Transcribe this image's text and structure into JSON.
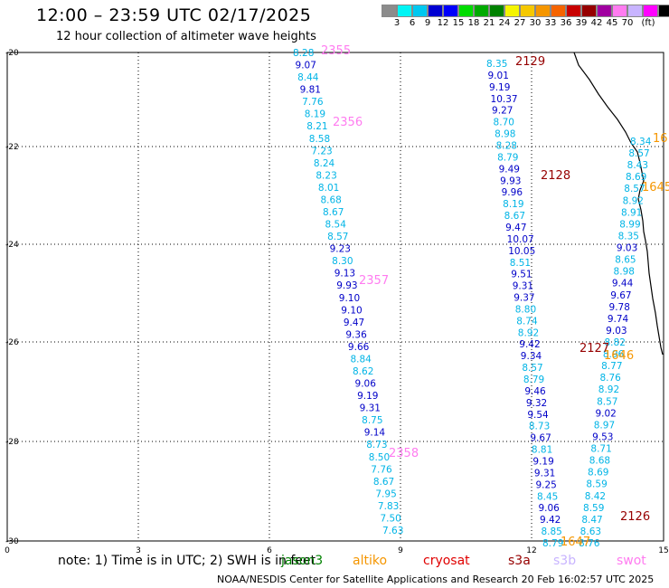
{
  "header": {
    "title": "12:00 – 23:59 UTC 02/17/2025",
    "subtitle": "12 hour collection of altimeter wave heights"
  },
  "legend": {
    "colors": [
      "#8c8c8c",
      "#00f5f5",
      "#00c8f0",
      "#0000d2",
      "#0000fa",
      "#00dc00",
      "#00aa00",
      "#008200",
      "#f5f500",
      "#f5c800",
      "#f59600",
      "#f56400",
      "#c80000",
      "#960000",
      "#a000a0",
      "#ff7cf0",
      "#c8b4ff",
      "#ff00ff",
      "#000000"
    ],
    "tick_labels": [
      "3",
      "6",
      "9",
      "12",
      "15",
      "18",
      "21",
      "24",
      "27",
      "30",
      "33",
      "36",
      "39",
      "42",
      "45",
      "70",
      "(ft)"
    ]
  },
  "map": {
    "x_ticks": [
      "0",
      "3",
      "6",
      "9",
      "12",
      "15"
    ],
    "y_ticks": [
      "-20",
      "-22",
      "-24",
      "-26",
      "-28",
      "-30"
    ],
    "coastline_color": "#000000",
    "grid_color": "#000000"
  },
  "tracks": [
    {
      "pass_label": "2355",
      "color": "#ff7cf0",
      "values": [
        "8.28",
        "9.07",
        "8.44",
        "9.81",
        "7.76",
        "8.19",
        "8.21",
        "8.58",
        "7.23",
        "8.24",
        "8.23",
        "8.01",
        "8.68",
        "8.67",
        "8.54",
        "8.57",
        "9.23",
        "8.30",
        "9.13",
        "9.93",
        "9.10",
        "9.10",
        "9.47",
        "9.36",
        "9.66",
        "8.84",
        "8.62",
        "9.06",
        "9.19",
        "9.31",
        "8.75",
        "9.14",
        "8.73",
        "8.50",
        "7.76",
        "8.67",
        "7.95",
        "7.83",
        "7.50",
        "7.63"
      ]
    },
    {
      "pass_label": "2129",
      "color": "#960000",
      "values": [
        "8.35",
        "9.01",
        "9.19",
        "10.37",
        "9.27",
        "8.70",
        "8.98",
        "8.28",
        "8.79",
        "9.49",
        "9.93",
        "9.96",
        "8.19",
        "8.67",
        "9.47",
        "10.07",
        "10.05",
        "8.51",
        "9.51",
        "9.31",
        "9.37",
        "8.80",
        "8.74",
        "8.92",
        "9.42",
        "9.34",
        "8.57",
        "8.79",
        "9.46",
        "9.32",
        "9.54",
        "8.73",
        "9.67",
        "8.81",
        "9.19",
        "9.31",
        "9.25",
        "8.45",
        "9.06",
        "9.42",
        "8.85",
        "8.79"
      ]
    },
    {
      "pass_label": "2127",
      "color": "#960000",
      "values": [
        "8.34",
        "8.57",
        "8.43",
        "8.69",
        "8.57",
        "8.92",
        "8.91",
        "8.99",
        "8.35",
        "9.03",
        "8.65",
        "8.98",
        "9.44",
        "9.67",
        "9.78",
        "9.74",
        "9.03",
        "8.82",
        "8.96",
        "8.77",
        "8.76",
        "8.92",
        "8.57",
        "9.02",
        "8.97",
        "9.53",
        "8.71",
        "8.68",
        "8.69",
        "8.59",
        "8.42",
        "8.59",
        "8.47",
        "8.63",
        "8.76"
      ]
    }
  ],
  "pass_labels": [
    {
      "text": "2355",
      "color": "#ff7cf0"
    },
    {
      "text": "2356",
      "color": "#ff7cf0"
    },
    {
      "text": "2357",
      "color": "#ff7cf0"
    },
    {
      "text": "2358",
      "color": "#ff7cf0"
    },
    {
      "text": "2129",
      "color": "#960000"
    },
    {
      "text": "2128",
      "color": "#960000"
    },
    {
      "text": "2127",
      "color": "#960000"
    },
    {
      "text": "2126",
      "color": "#960000"
    },
    {
      "text": "16",
      "color": "#f59600"
    },
    {
      "text": "1645",
      "color": "#f59600"
    },
    {
      "text": "1646",
      "color": "#f59600"
    },
    {
      "text": "1647",
      "color": "#f59600"
    }
  ],
  "footer": {
    "note": "note: 1) Time is in UTC; 2) SWH is in feet",
    "satellites": [
      {
        "name": "jason3",
        "color": "#008200"
      },
      {
        "name": "altiko",
        "color": "#f59600"
      },
      {
        "name": "cryosat",
        "color": "#e00000"
      },
      {
        "name": "s3a",
        "color": "#960000"
      },
      {
        "name": "s3b",
        "color": "#c8b4ff"
      },
      {
        "name": "swot",
        "color": "#ff7cf0"
      }
    ],
    "credit": "NOAA/NESDIS Center for Satellite Applications and Research   20 Feb 16:02:57 UTC 2025"
  }
}
